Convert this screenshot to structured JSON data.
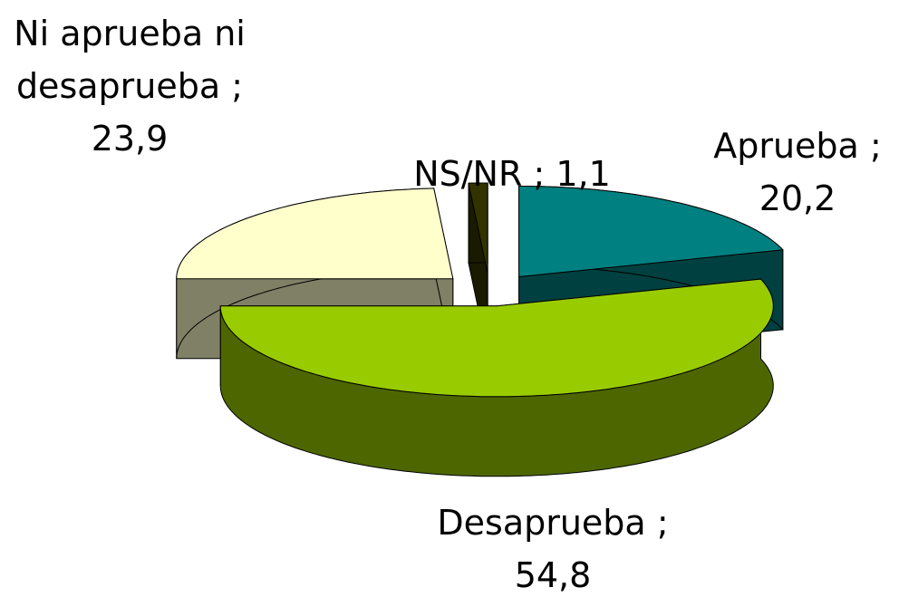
{
  "chart_data": {
    "type": "pie3d",
    "categories": [
      "Aprueba",
      "Desaprueba",
      "Ni aprueba ni desaprueba",
      "NS/NR"
    ],
    "values": [
      20.2,
      54.8,
      23.9,
      1.1
    ],
    "value_labels": [
      "20,2",
      "54,8",
      "23,9",
      "1,1"
    ],
    "label_separator": ";",
    "colors": [
      "#008080",
      "#99cc00",
      "#ffffcc",
      "#333300"
    ]
  }
}
